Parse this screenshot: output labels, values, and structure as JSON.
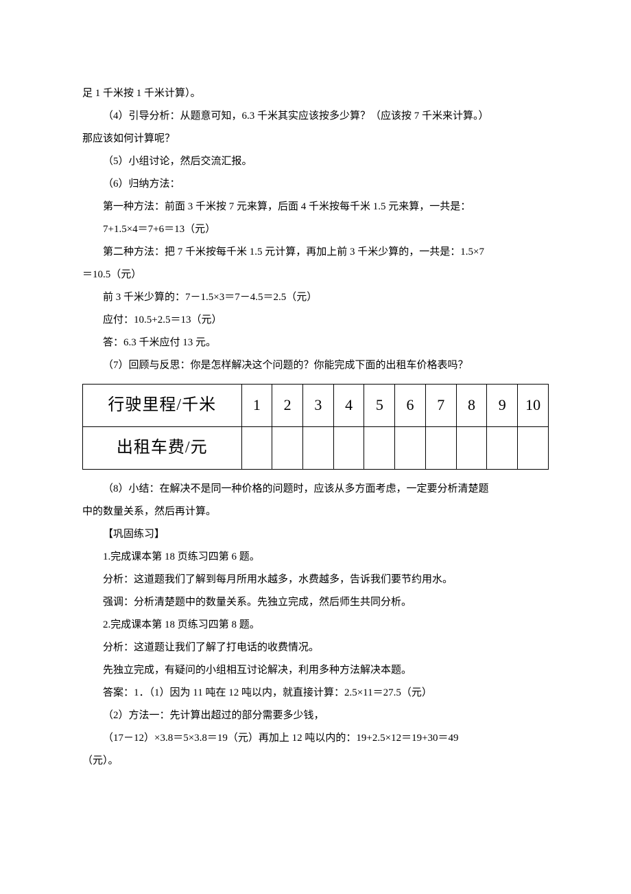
{
  "p": [
    "足 1 千米按 1 千米计算）。",
    "（4）引导分析：从题意可知，6.3 千米其实应该按多少算？（应该按 7 千米来计算。）",
    "那应该如何计算呢？",
    "（5）小组讨论，然后交流汇报。",
    "（6）归纳方法：",
    "第一种方法：前面 3 千米按 7 元来算，后面 4 千米按每千米 1.5 元来算，一共是：",
    "7+1.5×4＝7+6＝13（元）",
    "第二种方法：把 7 千米按每千米 1.5 元计算，再加上前 3 千米少算的，一共是：1.5×7",
    "＝10.5（元）",
    "前 3 千米少算的：7－1.5×3＝7－4.5＝2.5（元）",
    "应付：10.5+2.5＝13（元）",
    "答：6.3 千米应付 13 元。",
    "（7）回顾与反思：你是怎样解决这个问题的？你能完成下面的出租车价格表吗？"
  ],
  "table": {
    "row1_label": "行驶里程/千米",
    "row2_label": "出租车费/元",
    "cols": [
      "1",
      "2",
      "3",
      "4",
      "5",
      "6",
      "7",
      "8",
      "9",
      "10"
    ]
  },
  "q": [
    "（8）小结：在解决不是同一种价格的问题时，应该从多方面考虑，一定要分析清楚题",
    "中的数量关系，然后再计算。",
    "【巩固练习】",
    "1.完成课本第 18 页练习四第 6 题。",
    "分析：这道题我们了解到每月所用水越多，水费越多，告诉我们要节约用水。",
    "强调：分析清楚题中的数量关系。先独立完成，然后师生共同分析。",
    "2.完成课本第 18 页练习四第 8 题。",
    "分析：这道题让我们了解了打电话的收费情况。",
    "先独立完成，有疑问的小组相互讨论解决，利用多种方法解决本题。",
    "答案：1．（1）因为 11 吨在 12 吨以内，就直接计算：2.5×11＝27.5（元）",
    "（2）方法一：先计算出超过的部分需要多少钱，",
    "（17－12）×3.8＝5×3.8＝19（元）再加上 12 吨以内的：19+2.5×12＝19+30＝49",
    "（元）。"
  ]
}
